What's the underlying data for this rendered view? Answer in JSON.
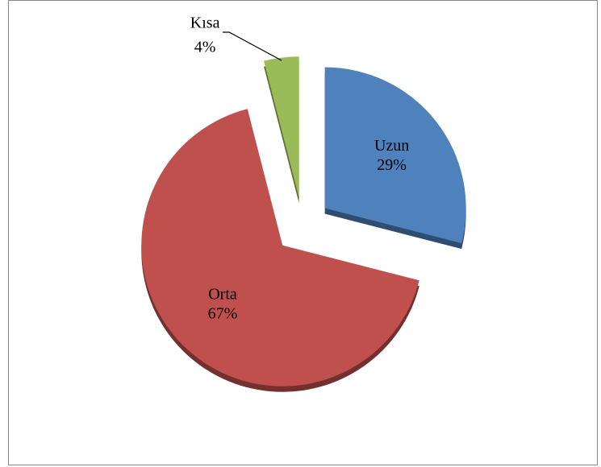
{
  "chart_data": {
    "type": "pie",
    "categories": [
      "Uzun",
      "Orta",
      "Kısa"
    ],
    "values": [
      29,
      67,
      4
    ],
    "value_labels": [
      "29%",
      "67%",
      "4%"
    ],
    "colors": [
      "#4f81bd",
      "#c0504d",
      "#9bbb59"
    ],
    "exploded": true
  }
}
